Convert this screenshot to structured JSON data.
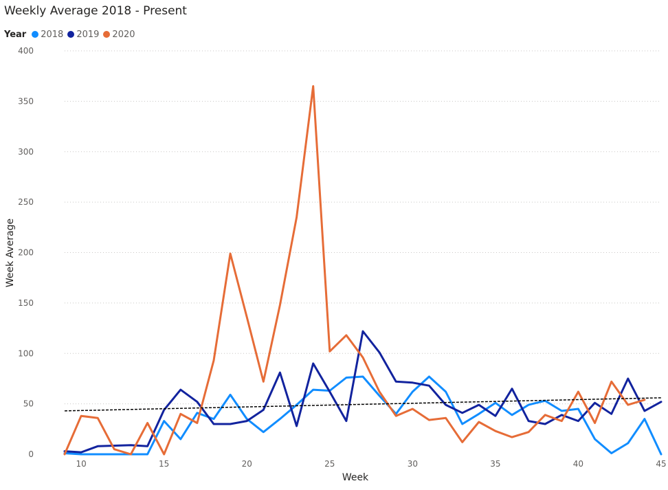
{
  "colors": {
    "2018": "#118DFF",
    "2019": "#12239E",
    "2020": "#E66C37",
    "trend": "#000000",
    "grid": "#C8C6C4"
  },
  "chart_data": {
    "type": "line",
    "title": "Weekly Average 2018 - Present",
    "legend_title": "Year",
    "legend_placement": "top-left",
    "xlabel": "Week",
    "ylabel": "Week Average",
    "xlim": [
      9,
      45
    ],
    "ylim": [
      0,
      400
    ],
    "x_ticks": [
      10,
      15,
      20,
      25,
      30,
      35,
      40,
      45
    ],
    "y_ticks": [
      0,
      50,
      100,
      150,
      200,
      250,
      300,
      350,
      400
    ],
    "grid": "horizontal dotted",
    "x": [
      9,
      10,
      11,
      12,
      13,
      14,
      15,
      16,
      17,
      18,
      19,
      20,
      21,
      22,
      23,
      24,
      25,
      26,
      27,
      28,
      29,
      30,
      31,
      32,
      33,
      34,
      35,
      36,
      37,
      38,
      39,
      40,
      41,
      42,
      43,
      44,
      45
    ],
    "series": [
      {
        "name": "2018",
        "values": [
          1,
          0,
          0,
          0,
          0,
          0,
          33,
          15,
          41,
          35,
          59,
          35,
          22,
          35,
          49,
          64,
          63,
          76,
          77,
          58,
          40,
          62,
          77,
          62,
          30,
          40,
          51,
          39,
          49,
          53,
          43,
          45,
          15,
          1,
          11,
          35,
          0
        ]
      },
      {
        "name": "2019",
        "values": [
          3,
          2,
          8,
          8.5,
          9,
          8,
          44,
          64,
          52,
          30,
          30,
          33,
          44,
          81,
          28,
          90,
          62,
          33,
          122,
          101,
          72,
          71,
          68,
          49,
          41,
          49,
          38,
          65,
          33,
          30,
          39,
          33,
          51,
          40,
          75,
          43,
          52
        ]
      },
      {
        "name": "2020",
        "values": [
          0,
          38,
          36,
          5,
          0,
          31,
          0,
          40,
          31,
          93,
          199,
          136,
          72,
          148,
          235,
          365,
          102,
          118,
          96,
          62,
          38,
          45,
          34,
          36,
          12,
          32,
          23,
          17,
          22,
          39,
          33,
          62,
          31,
          72,
          49,
          54,
          null
        ]
      }
    ],
    "trendline": {
      "x": [
        9,
        45
      ],
      "values": [
        43,
        56
      ]
    }
  }
}
